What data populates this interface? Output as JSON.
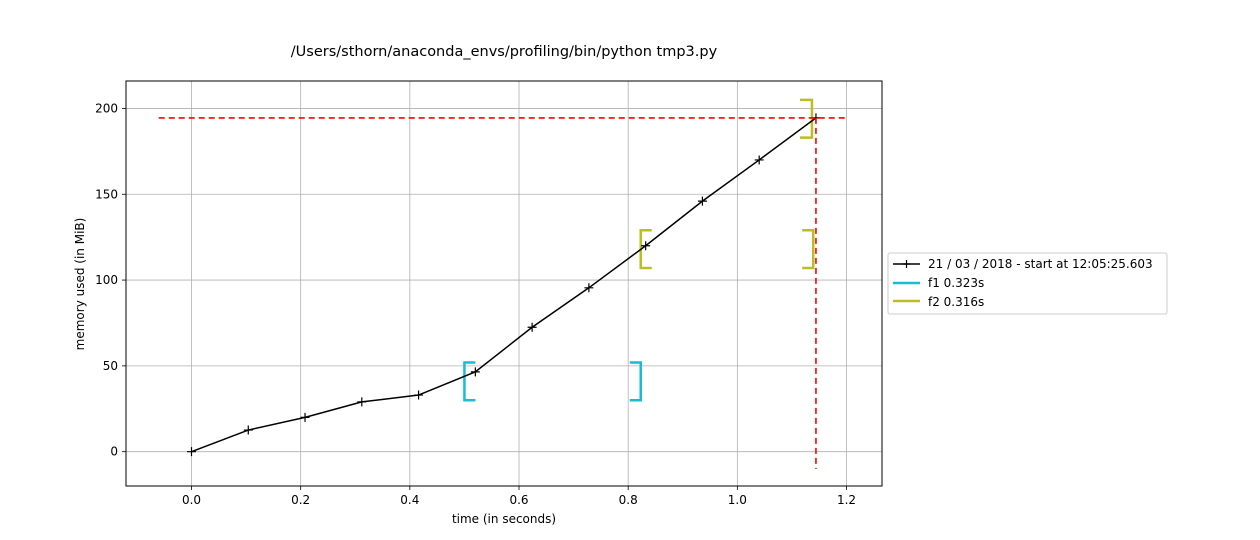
{
  "chart_data": {
    "type": "line",
    "title": "/Users/sthorn/anaconda_envs/profiling/bin/python tmp3.py",
    "xlabel": "time (in seconds)",
    "ylabel": "memory used (in MiB)",
    "xlim": [
      -0.12,
      1.265
    ],
    "ylim": [
      -20,
      216
    ],
    "xticks": [
      0.0,
      0.2,
      0.4,
      0.6,
      0.8,
      1.0,
      1.2
    ],
    "xtick_labels": [
      "0.0",
      "0.2",
      "0.4",
      "0.6",
      "0.8",
      "1.0",
      "1.2"
    ],
    "yticks": [
      0,
      50,
      100,
      150,
      200
    ],
    "ytick_labels": [
      "0",
      "50",
      "100",
      "150",
      "200"
    ],
    "grid": true,
    "legend_position": "outside-right",
    "series": [
      {
        "name": "21 / 03 / 2018 - start at 12:05:25.603",
        "color": "#000000",
        "marker": "plus",
        "x": [
          0.0,
          0.104,
          0.208,
          0.312,
          0.416,
          0.52,
          0.624,
          0.728,
          0.832,
          0.936,
          1.04,
          1.144
        ],
        "y": [
          0.0,
          12.6,
          20.0,
          29.0,
          33.0,
          46.5,
          72.5,
          95.5,
          120.0,
          146.0,
          170.0,
          194.5
        ]
      }
    ],
    "brackets": [
      {
        "name": "f1 0.323s",
        "color": "#17becf",
        "x_start": 0.5,
        "x_end": 0.823,
        "y_low": 30.0,
        "y_high": 52.0
      },
      {
        "name": "f2 0.316s",
        "color": "#bcbd22",
        "x_start": 0.823,
        "x_end": 1.139,
        "y_low": 107.0,
        "y_high": 129.0
      }
    ],
    "max_memory": {
      "value": 194.5,
      "time": 1.144,
      "color": "#ff0000"
    }
  }
}
